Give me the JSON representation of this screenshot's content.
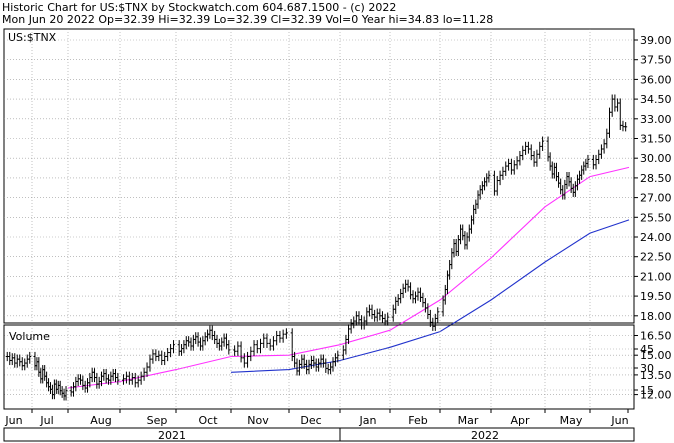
{
  "header": {
    "line1": "Historic Chart for US:$TNX by Stockwatch.com 604.687.1500 - (c) 2022",
    "line2": "Mon Jun 20 2022   Op=32.39  Hi=32.39  Lo=32.39  Cl=32.39  Vol=0   Year hi=34.83  lo=11.28"
  },
  "chart_data": [
    {
      "type": "ohlc",
      "symbol_label": "US:$TNX",
      "ylim": [
        10.5,
        40.0
      ],
      "y_ticks": [
        "39.00",
        "37.50",
        "36.00",
        "34.50",
        "33.00",
        "31.50",
        "30.00",
        "28.50",
        "27.00",
        "25.50",
        "24.00",
        "22.50",
        "21.00",
        "19.50",
        "18.00",
        "16.50",
        "15.00",
        "13.50",
        "12.00"
      ],
      "x_month_labels": [
        "Jun",
        "Jul",
        "Aug",
        "Sep",
        "Oct",
        "Nov",
        "Dec",
        "Jan",
        "Feb",
        "Mar",
        "Apr",
        "May",
        "Jun"
      ],
      "year_labels": [
        "2021",
        "2022"
      ],
      "grid": true,
      "colors": {
        "price": "#000000",
        "ma_short": "#ff33ff",
        "ma_long": "#2233cc",
        "grid": "#999999"
      },
      "price_series": [
        {
          "month": "Jun 2021",
          "values": [
            14.9,
            14.6,
            14.8,
            14.4,
            14.7,
            14.5,
            14.2,
            14.4,
            14.7,
            14.9
          ]
        },
        {
          "month": "Jul 2021",
          "values": [
            14.2,
            14.5,
            13.7,
            13.2,
            13.9,
            13.4,
            12.9,
            12.6,
            12.4,
            12.0,
            12.8,
            12.4,
            12.7,
            12.3,
            12.1,
            11.9,
            12.3
          ]
        },
        {
          "month": "Aug 2021",
          "values": [
            12.2,
            12.6,
            13.0,
            13.2,
            13.1,
            12.7,
            12.5,
            12.9,
            13.3,
            13.7,
            13.3,
            12.8,
            13.0,
            13.4,
            13.6,
            13.2,
            13.1,
            13.4,
            13.6,
            13.3,
            13.1
          ]
        },
        {
          "month": "Sep 2021",
          "values": [
            13.2,
            13.4,
            13.1,
            13.3,
            12.9,
            13.1,
            13.4,
            13.7,
            14.1,
            14.7,
            15.1,
            14.9,
            15.0,
            14.6,
            14.9,
            15.2,
            15.5,
            15.8
          ]
        },
        {
          "month": "Oct 2021",
          "values": [
            15.3,
            15.5,
            15.8,
            16.1,
            16.0,
            15.7,
            16.2,
            16.4,
            16.0,
            15.7,
            16.1,
            16.4,
            16.6,
            16.9,
            16.5,
            16.2,
            15.9,
            15.7,
            16.0,
            16.3,
            15.8,
            15.4
          ]
        },
        {
          "month": "Nov 2021",
          "values": [
            15.3,
            15.7,
            14.8,
            14.4,
            14.9,
            15.3,
            15.8,
            15.5,
            15.9,
            16.3,
            15.9,
            15.7,
            16.1,
            16.5,
            16.3,
            16.6,
            16.7
          ]
        },
        {
          "month": "Dec 2021",
          "values": [
            14.9,
            14.4,
            13.8,
            14.3,
            14.7,
            14.3,
            13.9,
            14.3,
            14.6,
            14.4,
            14.1,
            14.4,
            14.7,
            14.4,
            14.0,
            13.9,
            14.1,
            14.5,
            14.8,
            15.0
          ]
        },
        {
          "month": "Jan 2022",
          "values": [
            15.4,
            16.2,
            17.0,
            17.4,
            17.6,
            18.0,
            17.7,
            17.3,
            17.6,
            18.3,
            18.5,
            18.1,
            17.9,
            18.2,
            18.0,
            17.8,
            17.6,
            17.9
          ]
        },
        {
          "month": "Feb 2022",
          "values": [
            18.5,
            19.1,
            19.3,
            19.7,
            20.1,
            20.4,
            20.2,
            19.6,
            19.3,
            19.5,
            19.8,
            19.4,
            19.0,
            18.6,
            18.1,
            17.5,
            17.2,
            17.8,
            18.3
          ]
        },
        {
          "month": "Mar 2022",
          "values": [
            19.2,
            20.0,
            21.1,
            21.9,
            22.8,
            23.5,
            22.9,
            23.8,
            24.6,
            24.1,
            23.4,
            24.0,
            24.6,
            25.3,
            26.1,
            26.5,
            27.2,
            27.6,
            27.9,
            28.2,
            28.5,
            28.7
          ]
        },
        {
          "month": "Apr 2022",
          "values": [
            27.5,
            28.3,
            28.7,
            29.0,
            29.4,
            29.6,
            29.1,
            29.5,
            29.8,
            30.2,
            30.6,
            30.9,
            30.7,
            30.2,
            29.7,
            30.3,
            30.9,
            31.3
          ]
        },
        {
          "month": "May 2022",
          "values": [
            30.1,
            29.4,
            28.8,
            29.3,
            28.6,
            28.1,
            27.6,
            27.2,
            28.0,
            28.6,
            28.2,
            27.7,
            27.4,
            27.9,
            28.4,
            28.7,
            29.1,
            29.4,
            29.6,
            29.9
          ]
        },
        {
          "month": "Jun 2022",
          "values": [
            29.5,
            29.9,
            30.3,
            30.7,
            31.1,
            31.9,
            33.5,
            34.5,
            33.9,
            34.2,
            32.5,
            32.4,
            32.39
          ]
        }
      ],
      "moving_averages": [
        {
          "name": "",
          "color": "#ff33ff",
          "values": [
            {
              "x": "Aug 2021",
              "y": 12.5
            },
            {
              "x": "Sep 2021",
              "y": 13.0
            },
            {
              "x": "Oct 2021",
              "y": 13.9
            },
            {
              "x": "Nov 2021",
              "y": 14.9
            },
            {
              "x": "Dec 2021",
              "y": 15.0
            },
            {
              "x": "Jan 2022",
              "y": 15.8
            },
            {
              "x": "Feb 2022",
              "y": 16.9
            },
            {
              "x": "Mar 2022",
              "y": 19.2
            },
            {
              "x": "Apr 2022",
              "y": 22.4
            },
            {
              "x": "May 2022",
              "y": 26.3
            },
            {
              "x": "Jun 2022",
              "y": 28.6
            },
            {
              "x": "Jun 2022 end",
              "y": 29.3
            }
          ]
        },
        {
          "name": "",
          "color": "#2233cc",
          "values": [
            {
              "x": "Nov 2021",
              "y": 13.7
            },
            {
              "x": "Dec 2021",
              "y": 13.9
            },
            {
              "x": "Jan 2022",
              "y": 14.6
            },
            {
              "x": "Feb 2022",
              "y": 15.6
            },
            {
              "x": "Mar 2022",
              "y": 16.8
            },
            {
              "x": "Apr 2022",
              "y": 19.2
            },
            {
              "x": "May 2022",
              "y": 22.1
            },
            {
              "x": "Jun 2022",
              "y": 24.3
            },
            {
              "x": "Jun 2022 end",
              "y": 25.3
            }
          ]
        }
      ]
    },
    {
      "type": "bar",
      "title": "Volume",
      "y_ticks": [
        "45",
        "30",
        "15"
      ],
      "values": []
    }
  ]
}
